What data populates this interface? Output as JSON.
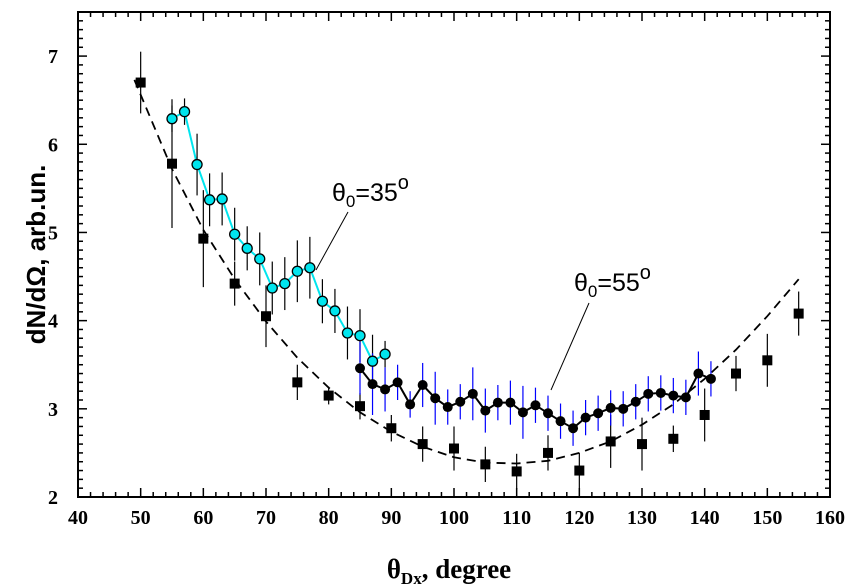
{
  "chart_data": {
    "type": "scatter",
    "xlabel": {
      "main": "θ",
      "sub": "Dx",
      "rest": ", degree"
    },
    "ylabel": "dN/dΩ, arb.un.",
    "xlim": [
      40,
      160
    ],
    "ylim": [
      2,
      7.5
    ],
    "xticks": [
      40,
      50,
      60,
      70,
      80,
      90,
      100,
      110,
      120,
      130,
      140,
      150,
      160
    ],
    "yticks": [
      2,
      3,
      4,
      5,
      6,
      7
    ],
    "grid": false,
    "annotations": [
      {
        "label_main": "θ",
        "label_sub": "0",
        "label_rest": "=35",
        "label_sup": "o",
        "points_to": [
          79,
          4.3
        ]
      },
      {
        "label_main": "θ",
        "label_sub": "0",
        "label_rest": "=55",
        "label_sup": "o",
        "points_to": [
          116,
          2.95
        ]
      }
    ],
    "series": [
      {
        "marker": "square",
        "color": "#000000",
        "errcolor": "#000000",
        "x": [
          50,
          55,
          60,
          65,
          70,
          75,
          80,
          85,
          90,
          95,
          100,
          105,
          110,
          115,
          120,
          125,
          130,
          135,
          140,
          145,
          150,
          155
        ],
        "y": [
          6.7,
          5.78,
          4.93,
          4.42,
          4.05,
          3.3,
          3.15,
          3.03,
          2.78,
          2.6,
          2.55,
          2.37,
          2.29,
          2.5,
          2.3,
          2.63,
          2.6,
          2.66,
          2.93,
          3.4,
          3.55,
          4.08
        ],
        "err": [
          0.35,
          0.73,
          0.55,
          0.25,
          0.35,
          0.2,
          0.1,
          0.15,
          0.15,
          0.2,
          0.25,
          0.2,
          0.2,
          0.2,
          0.2,
          0.3,
          0.3,
          0.15,
          0.3,
          0.2,
          0.3,
          0.25
        ]
      },
      {
        "marker": "circle-open",
        "color": "#00e5ee",
        "errcolor": "#000000",
        "line": "solid",
        "x": [
          55,
          57,
          59,
          61,
          63,
          65,
          67,
          69,
          71,
          73,
          75,
          77,
          79,
          81,
          83,
          85,
          87,
          89
        ],
        "y": [
          6.29,
          6.37,
          5.77,
          5.37,
          5.38,
          4.98,
          4.82,
          4.7,
          4.37,
          4.42,
          4.56,
          4.6,
          4.22,
          4.11,
          3.86,
          3.83,
          3.54,
          3.62
        ],
        "err": [
          0.15,
          0.15,
          0.35,
          0.3,
          0.3,
          0.3,
          0.25,
          0.3,
          0.3,
          0.3,
          0.35,
          0.35,
          0.25,
          0.25,
          0.3,
          0.3,
          0.3,
          0.15
        ]
      },
      {
        "marker": "circle-filled",
        "color": "#000000",
        "errcolor": "#0000ff",
        "line": "solid",
        "x": [
          85,
          87,
          89,
          91,
          93,
          95,
          97,
          99,
          101,
          103,
          105,
          107,
          109,
          111,
          113,
          115,
          117,
          119,
          121,
          123,
          125,
          127,
          129,
          131,
          133,
          135,
          137,
          139,
          141
        ],
        "y": [
          3.46,
          3.28,
          3.22,
          3.3,
          3.05,
          3.27,
          3.12,
          3.02,
          3.08,
          3.17,
          2.98,
          3.07,
          3.07,
          2.96,
          3.04,
          2.95,
          2.86,
          2.78,
          2.9,
          2.95,
          3.01,
          3.0,
          3.08,
          3.17,
          3.18,
          3.15,
          3.13,
          3.4,
          3.34
        ],
        "err": [
          0.3,
          0.35,
          0.25,
          0.2,
          0.15,
          0.25,
          0.3,
          0.2,
          0.2,
          0.3,
          0.25,
          0.2,
          0.25,
          0.3,
          0.2,
          0.2,
          0.2,
          0.2,
          0.2,
          0.2,
          0.2,
          0.2,
          0.2,
          0.2,
          0.2,
          0.2,
          0.2,
          0.25,
          0.2
        ]
      },
      {
        "type": "fit",
        "line": "dashed",
        "color": "#000000",
        "x": [
          49,
          55,
          60,
          65,
          70,
          75,
          80,
          85,
          90,
          95,
          100,
          105,
          110,
          115,
          120,
          125,
          130,
          135,
          140,
          145,
          150,
          155
        ],
        "y": [
          6.73,
          5.72,
          5.03,
          4.47,
          3.99,
          3.58,
          3.24,
          2.96,
          2.74,
          2.57,
          2.45,
          2.39,
          2.38,
          2.41,
          2.5,
          2.63,
          2.82,
          3.05,
          3.34,
          3.67,
          4.05,
          4.47
        ]
      }
    ]
  }
}
